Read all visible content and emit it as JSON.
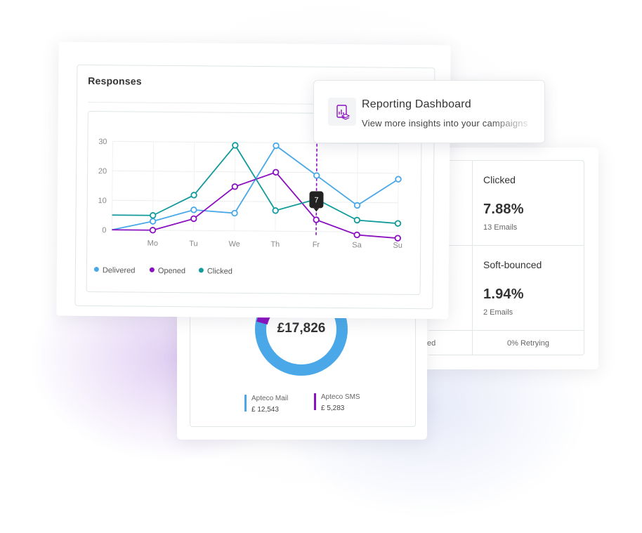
{
  "stats": {
    "clicked": {
      "label": "Clicked",
      "percent": "7.88%",
      "count": "13 Emails"
    },
    "soft_bounced": {
      "label": "Soft-bounced",
      "percent": "1.94%",
      "count": "2 Emails"
    },
    "footer_left": "ed",
    "footer_right": "0% Retrying"
  },
  "revenue": {
    "total": "£17,826",
    "items": [
      {
        "name": "Apteco Mail",
        "amount": "£ 12,543",
        "color": "#4aa8e8"
      },
      {
        "name": "Apteco SMS",
        "amount": "£ 5,283",
        "color": "#8a10c0"
      }
    ]
  },
  "responses": {
    "title": "Responses",
    "tooltip_value": "7"
  },
  "reporting": {
    "title": "Reporting Dashboard",
    "subtitle": "View more insights into your campaigns"
  },
  "chart_data": {
    "type": "line",
    "title": "Responses",
    "categories": [
      "Mo",
      "Tu",
      "We",
      "Th",
      "Fr",
      "Sa",
      "Su"
    ],
    "x": [
      "",
      "Mo",
      "Tu",
      "We",
      "Th",
      "Fr",
      "Sa",
      "Su"
    ],
    "y_ticks": [
      0,
      10,
      20,
      30
    ],
    "ylim": [
      0,
      30
    ],
    "grid": true,
    "legend_position": "bottom-left",
    "series": [
      {
        "name": "Delivered",
        "color": "#4aa8e8",
        "values": [
          0,
          3,
          7,
          6,
          29,
          19,
          9,
          18
        ]
      },
      {
        "name": "Opened",
        "color": "#8a10c0",
        "values": [
          0,
          0,
          4,
          15,
          20,
          4,
          -1,
          -2
        ]
      },
      {
        "name": "Clicked",
        "color": "#139b9b",
        "values": [
          5,
          5,
          12,
          29,
          7,
          11,
          4,
          3
        ]
      }
    ],
    "highlight": {
      "category": "Fr",
      "value": 7
    }
  }
}
